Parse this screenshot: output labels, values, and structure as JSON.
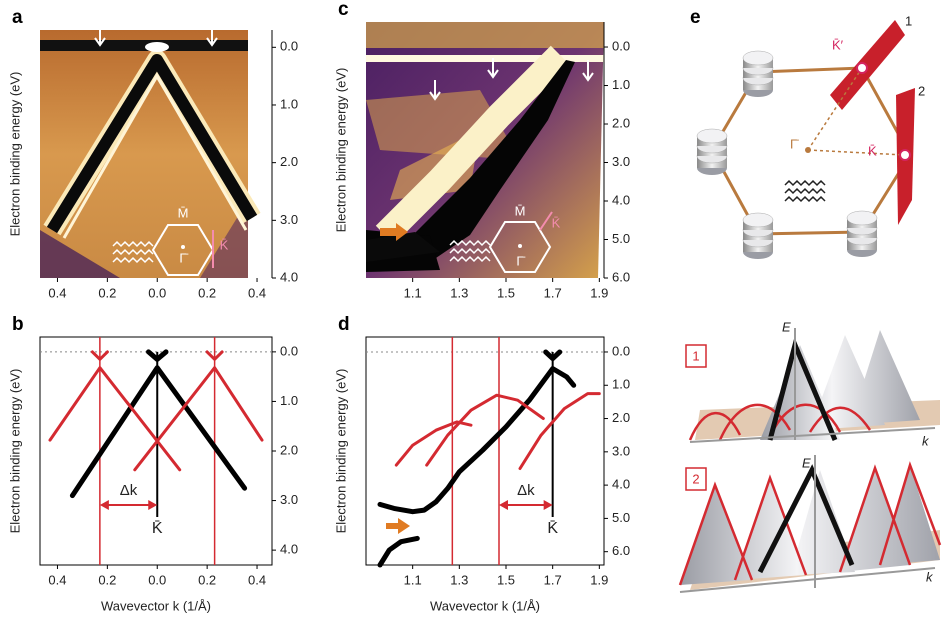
{
  "chart_data": [
    {
      "type": "image",
      "label": "a",
      "ylabel": "Electron binding energy (eV)",
      "xlim": [
        -0.47,
        0.46
      ],
      "xticks": [
        {
          "value": -0.4,
          "label": "0.4"
        },
        {
          "value": -0.2,
          "label": "0.2"
        },
        {
          "value": 0,
          "label": "0.0"
        },
        {
          "value": 0.2,
          "label": "0.2"
        },
        {
          "value": 0.4,
          "label": "0.4"
        }
      ],
      "ylim": [
        4.0,
        -0.3
      ],
      "yticks": [
        {
          "value": 0,
          "label": "0.0"
        },
        {
          "value": 1,
          "label": "1.0"
        },
        {
          "value": 2,
          "label": "2.0"
        },
        {
          "value": 3,
          "label": "3.0"
        },
        {
          "value": 4,
          "label": "4.0"
        }
      ],
      "inset_labels": [
        "M̄",
        "Γ̄",
        "K̄"
      ]
    },
    {
      "type": "line",
      "label": "b",
      "ylabel": "Electron binding energy (eV)",
      "xlabel": "Wavevector k (1/Å)",
      "xlim": [
        -0.47,
        0.46
      ],
      "xticks": [
        {
          "value": -0.4,
          "label": "0.4"
        },
        {
          "value": -0.2,
          "label": "0.2"
        },
        {
          "value": 0,
          "label": "0.0"
        },
        {
          "value": 0.2,
          "label": "0.2"
        },
        {
          "value": 0.4,
          "label": "0.4"
        }
      ],
      "ylim": [
        4.3,
        -0.3
      ],
      "yticks": [
        {
          "value": 0,
          "label": "0.0"
        },
        {
          "value": 1,
          "label": "1.0"
        },
        {
          "value": 2,
          "label": "2.0"
        },
        {
          "value": 3,
          "label": "3.0"
        },
        {
          "value": 4,
          "label": "4.0"
        }
      ],
      "zero_line": true,
      "vlines": [
        {
          "x": -0.23,
          "color": "#d42a31"
        },
        {
          "x": 0.23,
          "color": "#d42a31"
        },
        {
          "x": 0,
          "color": "#000000"
        }
      ],
      "series": [
        {
          "color": "#000000",
          "x": [
            -0.34,
            0,
            0.35
          ],
          "values": [
            2.9,
            0.32,
            2.75
          ]
        },
        {
          "color": "#d42a31",
          "x": [
            -0.43,
            -0.23,
            0.09
          ],
          "values": [
            1.78,
            0.32,
            2.38
          ]
        },
        {
          "color": "#d42a31",
          "x": [
            -0.09,
            0.23,
            0.42
          ],
          "values": [
            2.38,
            0.32,
            1.78
          ]
        },
        {
          "color": "#000000",
          "x": [
            -0.035,
            0,
            0.035
          ],
          "values": [
            0.0,
            0.15,
            0.0
          ]
        },
        {
          "color": "#d42a31",
          "x": [
            -0.26,
            -0.23,
            -0.2
          ],
          "values": [
            0.0,
            0.15,
            0.0
          ]
        },
        {
          "color": "#d42a31",
          "x": [
            0.2,
            0.23,
            0.26
          ],
          "values": [
            0.0,
            0.15,
            0.0
          ]
        }
      ],
      "delta_k_label": "Δk",
      "point_label": "K̄"
    },
    {
      "type": "image",
      "label": "c",
      "ylabel": "Electron binding energy (eV)",
      "xlim": [
        0.9,
        1.92
      ],
      "xticks": [
        1.1,
        1.3,
        1.5,
        1.7,
        1.9
      ],
      "ylim": [
        6.0,
        -0.65
      ],
      "yticks": [
        {
          "value": 0,
          "label": "0.0"
        },
        {
          "value": 1,
          "label": "1.0"
        },
        {
          "value": 2,
          "label": "2.0"
        },
        {
          "value": 3,
          "label": "3.0"
        },
        {
          "value": 4,
          "label": "4.0"
        },
        {
          "value": 5,
          "label": "5.0"
        },
        {
          "value": 6,
          "label": "6.0"
        }
      ],
      "inset_labels": [
        "M̄",
        "Γ̄",
        "K̄"
      ]
    },
    {
      "type": "line",
      "label": "d",
      "ylabel": "Electron binding energy (eV)",
      "xlabel": "Wavevector k (1/Å)",
      "xlim": [
        0.9,
        1.92
      ],
      "xticks": [
        1.1,
        1.3,
        1.5,
        1.7,
        1.9
      ],
      "ylim": [
        6.4,
        -0.45
      ],
      "yticks": [
        {
          "value": 0,
          "label": "0.0"
        },
        {
          "value": 1,
          "label": "1.0"
        },
        {
          "value": 2,
          "label": "2.0"
        },
        {
          "value": 3,
          "label": "3.0"
        },
        {
          "value": 4,
          "label": "4.0"
        },
        {
          "value": 5,
          "label": "5.0"
        },
        {
          "value": 6,
          "label": "6.0"
        }
      ],
      "zero_line": true,
      "vlines": [
        {
          "x": 1.27,
          "color": "#d42a31"
        },
        {
          "x": 1.47,
          "color": "#d42a31"
        },
        {
          "x": 1.7,
          "color": "#000000"
        }
      ],
      "series": [
        {
          "color": "#000000",
          "x": [
            0.96,
            1.02,
            1.1,
            1.15,
            1.2,
            1.25,
            1.3,
            1.4,
            1.5,
            1.6,
            1.7,
            1.76,
            1.79
          ],
          "values": [
            4.58,
            4.7,
            4.8,
            4.75,
            4.5,
            4.1,
            3.6,
            2.95,
            2.25,
            1.45,
            0.5,
            0.75,
            1.0
          ]
        },
        {
          "color": "#000000",
          "x": [
            0.96,
            1.0,
            1.05,
            1.12
          ],
          "values": [
            6.4,
            5.95,
            5.7,
            5.6
          ]
        },
        {
          "color": "#000000",
          "x": [
            1.67,
            1.7,
            1.73
          ],
          "values": [
            0.0,
            0.2,
            0.0
          ]
        },
        {
          "color": "#d42a31",
          "x": [
            1.03,
            1.1,
            1.2,
            1.29,
            1.35
          ],
          "values": [
            3.4,
            2.8,
            2.35,
            2.1,
            2.2
          ]
        },
        {
          "color": "#d42a31",
          "x": [
            1.16,
            1.25,
            1.35,
            1.46,
            1.55,
            1.66
          ],
          "values": [
            3.4,
            2.5,
            1.75,
            1.3,
            1.45,
            2.0
          ]
        },
        {
          "color": "#d42a31",
          "x": [
            1.56,
            1.65,
            1.75,
            1.85,
            1.9
          ],
          "values": [
            3.5,
            2.5,
            1.7,
            1.25,
            1.25
          ]
        }
      ],
      "delta_k_label": "Δk",
      "point_label": "K̄"
    }
  ],
  "diagram": {
    "label": "e",
    "k_prime": "K̄′",
    "plane_1": "1",
    "plane_2": "2",
    "gamma": "Γ̄",
    "k_point": "K̄",
    "cones": [
      {
        "label": "1",
        "energy_axis": "E",
        "k_axis": "k"
      },
      {
        "label": "2",
        "energy_axis": "E",
        "k_axis": "k"
      }
    ]
  }
}
